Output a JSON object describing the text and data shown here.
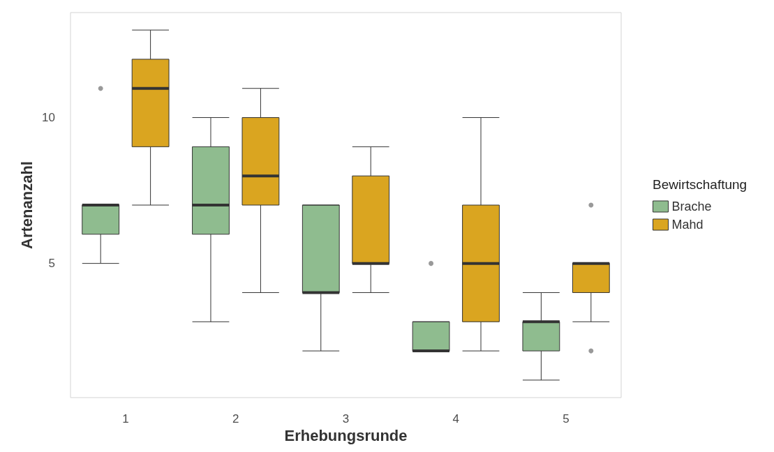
{
  "chart_data": {
    "type": "box",
    "xlabel": "Erhebungsrunde",
    "ylabel": "Artenanzahl",
    "legend_title": "Bewirtschaftung",
    "legend": "right",
    "grid": false,
    "categories": [
      "1",
      "2",
      "3",
      "4",
      "5"
    ],
    "ylim": [
      0.4,
      13.6
    ],
    "yticks": [
      5,
      10
    ],
    "series": [
      {
        "name": "Brache",
        "color": "#8fbc8f",
        "boxes": [
          {
            "low": 5,
            "q1": 6,
            "median": 7,
            "q3": 7,
            "high": 7,
            "outliers": [
              11
            ]
          },
          {
            "low": 3,
            "q1": 6,
            "median": 7,
            "q3": 9,
            "high": 10
          },
          {
            "low": 2,
            "q1": 4,
            "median": 4,
            "q3": 7,
            "high": 7
          },
          {
            "low": 2,
            "q1": 2,
            "median": 2,
            "q3": 3,
            "high": 3,
            "outliers": [
              5
            ]
          },
          {
            "low": 1,
            "q1": 2,
            "median": 3,
            "q3": 3,
            "high": 4
          }
        ]
      },
      {
        "name": "Mahd",
        "color": "#daa520",
        "boxes": [
          {
            "low": 7,
            "q1": 9,
            "median": 11,
            "q3": 12,
            "high": 13
          },
          {
            "low": 4,
            "q1": 7,
            "median": 8,
            "q3": 10,
            "high": 11
          },
          {
            "low": 4,
            "q1": 5,
            "median": 5,
            "q3": 8,
            "high": 9
          },
          {
            "low": 2,
            "q1": 3,
            "median": 5,
            "q3": 7,
            "high": 10
          },
          {
            "low": 3,
            "q1": 4,
            "median": 5,
            "q3": 5,
            "high": 5,
            "outliers": [
              7,
              2
            ]
          }
        ]
      }
    ]
  }
}
